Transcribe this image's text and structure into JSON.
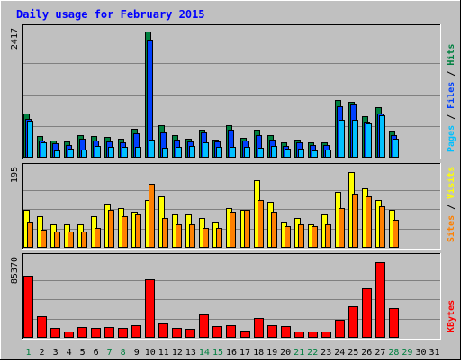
{
  "chart_data": [
    {
      "type": "bar",
      "title": "Daily usage for February 2015",
      "ymax_label": "2417",
      "ylim": [
        0,
        2417
      ],
      "ylabel_parts": [
        {
          "text": "Pages",
          "color": "#00c0ff"
        },
        {
          "text": " / ",
          "color": "#000000"
        },
        {
          "text": "Files",
          "color": "#0040ff"
        },
        {
          "text": " / ",
          "color": "#000000"
        },
        {
          "text": "Hits",
          "color": "#008040"
        }
      ],
      "categories": [
        "1",
        "2",
        "3",
        "4",
        "5",
        "6",
        "7",
        "8",
        "9",
        "10",
        "11",
        "12",
        "13",
        "14",
        "15",
        "16",
        "17",
        "18",
        "19",
        "20",
        "21",
        "22",
        "23",
        "24",
        "25",
        "26",
        "27",
        "28",
        "29",
        "30",
        "31"
      ],
      "weekend_days": [
        "1",
        "7",
        "8",
        "14",
        "15",
        "21",
        "22",
        "28",
        "29"
      ],
      "series": [
        {
          "name": "Hits",
          "color": "#008040",
          "values": [
            840,
            420,
            330,
            310,
            440,
            410,
            400,
            360,
            560,
            2417,
            630,
            430,
            360,
            540,
            340,
            630,
            380,
            530,
            430,
            290,
            340,
            290,
            290,
            1110,
            1070,
            790,
            960,
            510,
            0,
            0,
            0
          ]
        },
        {
          "name": "Files",
          "color": "#0040ff",
          "values": [
            740,
            330,
            270,
            240,
            360,
            330,
            310,
            300,
            470,
            2270,
            480,
            350,
            310,
            490,
            310,
            540,
            330,
            430,
            340,
            230,
            300,
            250,
            250,
            990,
            1030,
            690,
            850,
            440,
            0,
            0,
            0
          ]
        },
        {
          "name": "Pages",
          "color": "#00c0ff",
          "values": [
            700,
            290,
            140,
            170,
            150,
            220,
            210,
            200,
            210,
            340,
            190,
            200,
            220,
            300,
            200,
            210,
            200,
            190,
            220,
            170,
            180,
            140,
            150,
            720,
            720,
            660,
            820,
            360,
            0,
            0,
            0
          ]
        }
      ]
    },
    {
      "type": "bar",
      "ymax_label": "195",
      "ylim": [
        0,
        195
      ],
      "ylabel_parts": [
        {
          "text": "Sites",
          "color": "#ff8000"
        },
        {
          "text": " / ",
          "color": "#000000"
        },
        {
          "text": "Visits",
          "color": "#ffff00"
        }
      ],
      "categories": [
        "1",
        "2",
        "3",
        "4",
        "5",
        "6",
        "7",
        "8",
        "9",
        "10",
        "11",
        "12",
        "13",
        "14",
        "15",
        "16",
        "17",
        "18",
        "19",
        "20",
        "21",
        "22",
        "23",
        "24",
        "25",
        "26",
        "27",
        "28",
        "29",
        "30",
        "31"
      ],
      "series": [
        {
          "name": "Visits",
          "color": "#ffff00",
          "values": [
            95,
            80,
            60,
            60,
            60,
            80,
            110,
            100,
            90,
            120,
            130,
            85,
            85,
            75,
            65,
            100,
            95,
            170,
            115,
            65,
            75,
            60,
            85,
            140,
            190,
            150,
            120,
            95,
            0,
            0,
            0
          ]
        },
        {
          "name": "Sites",
          "color": "#ff8000",
          "values": [
            65,
            45,
            40,
            40,
            40,
            50,
            95,
            80,
            85,
            160,
            75,
            60,
            60,
            50,
            50,
            90,
            95,
            120,
            90,
            55,
            60,
            55,
            60,
            100,
            135,
            130,
            105,
            70,
            0,
            0,
            0
          ]
        }
      ]
    },
    {
      "type": "bar",
      "ymax_label": "85370",
      "ylim": [
        0,
        85370
      ],
      "ylabel_parts": [
        {
          "text": "KBytes",
          "color": "#ff0000"
        }
      ],
      "categories": [
        "1",
        "2",
        "3",
        "4",
        "5",
        "6",
        "7",
        "8",
        "9",
        "10",
        "11",
        "12",
        "13",
        "14",
        "15",
        "16",
        "17",
        "18",
        "19",
        "20",
        "21",
        "22",
        "23",
        "24",
        "25",
        "26",
        "27",
        "28",
        "29",
        "30",
        "31"
      ],
      "series": [
        {
          "name": "KBytes",
          "color": "#ff0000",
          "values": [
            68000,
            23500,
            10500,
            7200,
            12300,
            11300,
            12300,
            10500,
            14200,
            64100,
            16100,
            11300,
            10000,
            25500,
            13100,
            14000,
            8200,
            21400,
            14200,
            12900,
            6800,
            7200,
            7300,
            19800,
            35000,
            55000,
            83000,
            32500,
            0,
            0,
            0
          ]
        }
      ]
    }
  ]
}
